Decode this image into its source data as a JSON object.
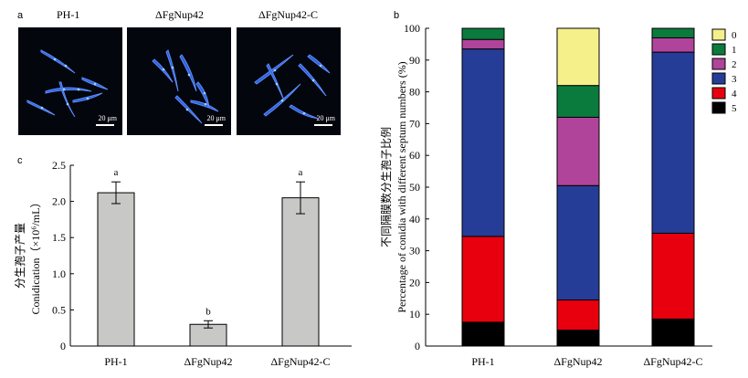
{
  "panels": {
    "a_label": "a",
    "b_label": "b",
    "c_label": "c"
  },
  "panel_a": {
    "images": [
      {
        "title": "PH-1",
        "scale": "20 μm"
      },
      {
        "title": "ΔFgNup42",
        "scale": "20 μm"
      },
      {
        "title": "ΔFgNup42-C",
        "scale": "20 μm"
      }
    ]
  },
  "chart_data": [
    {
      "type": "bar",
      "panel": "c",
      "categories": [
        "PH-1",
        "ΔFgNup42",
        "ΔFgNup42-C"
      ],
      "values": [
        2.12,
        0.3,
        2.05
      ],
      "errors": [
        0.15,
        0.05,
        0.22
      ],
      "significance": [
        "a",
        "b",
        "a"
      ],
      "ylabel_cn": "分生孢子产量",
      "ylabel": "Conidication（×10⁶/mL）",
      "ylim": [
        0,
        2.5
      ],
      "yticks": [
        "0",
        "0.5",
        "1.0",
        "1.5",
        "2.0",
        "2.5"
      ],
      "bar_color": "#c8c8c6"
    },
    {
      "type": "bar",
      "stacked": true,
      "panel": "b",
      "categories": [
        "PH-1",
        "ΔFgNup42",
        "ΔFgNup42-C"
      ],
      "ylabel_cn": "不同隔膜数分生孢子比例",
      "ylabel": "Percentage of conidia with different septum numbers (%)",
      "ylim": [
        0,
        100
      ],
      "yticks": [
        "0",
        "10",
        "20",
        "30",
        "40",
        "50",
        "60",
        "70",
        "80",
        "90",
        "100"
      ],
      "legend_position": "top-right",
      "series": [
        {
          "name": "5",
          "color": "#000000",
          "values": [
            7.5,
            5,
            8.5
          ]
        },
        {
          "name": "4",
          "color": "#e8000e",
          "values": [
            27,
            9.5,
            27
          ]
        },
        {
          "name": "3",
          "color": "#263d97",
          "values": [
            59,
            36,
            57
          ]
        },
        {
          "name": "2",
          "color": "#b0449a",
          "values": [
            3,
            21.5,
            4.5
          ]
        },
        {
          "name": "1",
          "color": "#0b7b3d",
          "values": [
            3.5,
            10,
            3
          ]
        },
        {
          "name": "0",
          "color": "#f6f08a",
          "values": [
            0,
            18,
            0
          ]
        }
      ]
    }
  ]
}
